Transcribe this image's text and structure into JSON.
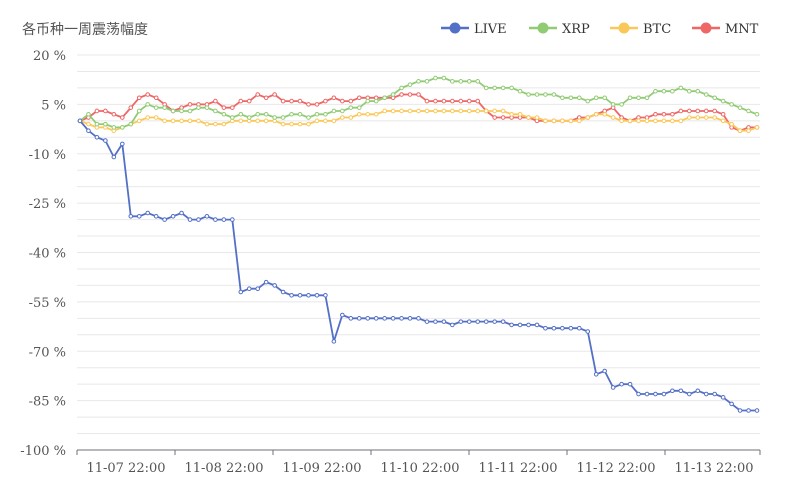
{
  "chart_data": {
    "type": "line",
    "title": "各币种一周震荡幅度",
    "ylim": [
      -100,
      20
    ],
    "yticks": [
      20,
      5,
      -10,
      -25,
      -40,
      -55,
      -70,
      -85,
      -100
    ],
    "ytick_labels": [
      "20 %",
      "5 %",
      "-10 %",
      "-25 %",
      "-40 %",
      "-55 %",
      "-70 %",
      "-85 %",
      "-100 %"
    ],
    "xtick_labels": [
      "11-07 22:00",
      "11-08 22:00",
      "11-09 22:00",
      "11-10 22:00",
      "11-11 22:00",
      "11-12 22:00",
      "11-13 22:00"
    ],
    "grid": true,
    "legend_position": "top-right",
    "series": [
      {
        "name": "LIVE",
        "color": "#5470c6",
        "values": [
          0,
          -3,
          -5,
          -6,
          -11,
          -7,
          -29,
          -29,
          -28,
          -29,
          -30,
          -29,
          -28,
          -30,
          -30,
          -29,
          -30,
          -30,
          -30,
          -52,
          -51,
          -51,
          -49,
          -50,
          -52,
          -53,
          -53,
          -53,
          -53,
          -53,
          -67,
          -59,
          -60,
          -60,
          -60,
          -60,
          -60,
          -60,
          -60,
          -60,
          -60,
          -61,
          -61,
          -61,
          -62,
          -61,
          -61,
          -61,
          -61,
          -61,
          -61,
          -62,
          -62,
          -62,
          -62,
          -63,
          -63,
          -63,
          -63,
          -63,
          -64,
          -77,
          -76,
          -81,
          -80,
          -80,
          -83,
          -83,
          -83,
          -83,
          -82,
          -82,
          -83,
          -82,
          -83,
          -83,
          -84,
          -86,
          -88,
          -88,
          -88
        ]
      },
      {
        "name": "XRP",
        "color": "#91cc75",
        "values": [
          0,
          2,
          -1,
          -1,
          -2,
          -2,
          -1,
          3,
          5,
          4,
          4,
          3,
          3,
          3,
          4,
          4,
          3,
          2,
          1,
          2,
          1,
          2,
          2,
          1,
          1,
          2,
          2,
          1,
          2,
          2,
          3,
          3,
          4,
          4,
          6,
          6,
          7,
          8,
          10,
          11,
          12,
          12,
          13,
          13,
          12,
          12,
          12,
          12,
          10,
          10,
          10,
          10,
          9,
          8,
          8,
          8,
          8,
          7,
          7,
          7,
          6,
          7,
          7,
          5,
          5,
          7,
          7,
          7,
          9,
          9,
          9,
          10,
          9,
          9,
          8,
          7,
          6,
          5,
          4,
          3,
          2
        ]
      },
      {
        "name": "BTC",
        "color": "#fac858",
        "values": [
          0,
          -1,
          -2,
          -2,
          -3,
          -2,
          -1,
          0,
          1,
          1,
          0,
          0,
          0,
          0,
          0,
          -1,
          -1,
          -1,
          0,
          0,
          0,
          0,
          0,
          0,
          -1,
          -1,
          -1,
          -1,
          0,
          0,
          0,
          1,
          1,
          2,
          2,
          2,
          3,
          3,
          3,
          3,
          3,
          3,
          3,
          3,
          3,
          3,
          3,
          3,
          3,
          3,
          3,
          2,
          2,
          1,
          1,
          0,
          0,
          0,
          0,
          0,
          1,
          2,
          2,
          1,
          0,
          0,
          0,
          0,
          0,
          0,
          0,
          0,
          1,
          1,
          1,
          1,
          0,
          -1,
          -3,
          -3,
          -2
        ]
      },
      {
        "name": "MNT",
        "color": "#ee6666",
        "values": [
          0,
          1,
          3,
          3,
          2,
          1,
          4,
          7,
          8,
          7,
          5,
          3,
          4,
          5,
          5,
          5,
          6,
          4,
          4,
          6,
          6,
          8,
          7,
          8,
          6,
          6,
          6,
          5,
          5,
          6,
          7,
          6,
          6,
          7,
          7,
          7,
          7,
          7,
          8,
          8,
          8,
          6,
          6,
          6,
          6,
          6,
          6,
          6,
          3,
          1,
          1,
          1,
          1,
          1,
          0,
          0,
          0,
          0,
          0,
          1,
          1,
          2,
          3,
          4,
          1,
          0,
          1,
          1,
          2,
          2,
          2,
          3,
          3,
          3,
          3,
          3,
          2,
          -2,
          -3,
          -2,
          -2
        ]
      }
    ]
  }
}
